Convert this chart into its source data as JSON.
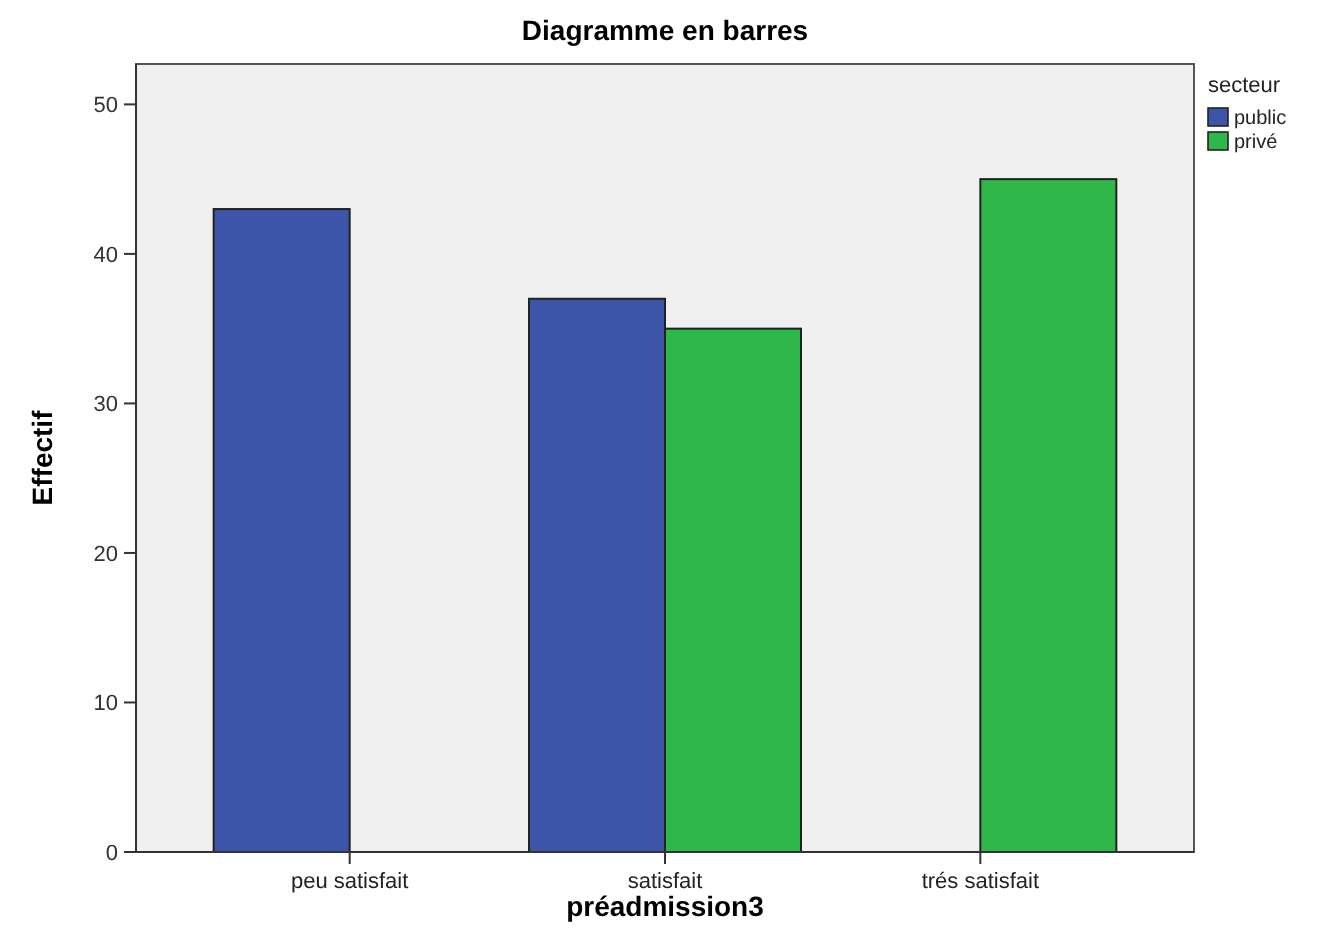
{
  "chart_data": {
    "type": "bar",
    "title": "Diagramme en barres",
    "xlabel": "préadmission3",
    "ylabel": "Effectif",
    "legend_title": "secteur",
    "categories": [
      "peu satisfait",
      "satisfait",
      "trés satisfait"
    ],
    "series": [
      {
        "name": "public",
        "color": "#3d55a8",
        "values": [
          43,
          37,
          null
        ]
      },
      {
        "name": "privé",
        "color": "#2fb84a",
        "values": [
          null,
          35,
          45
        ]
      }
    ],
    "ylim": [
      0,
      52.7
    ],
    "yticks": [
      0,
      10,
      20,
      30,
      40,
      50
    ],
    "grid": false,
    "legend": "top right"
  }
}
